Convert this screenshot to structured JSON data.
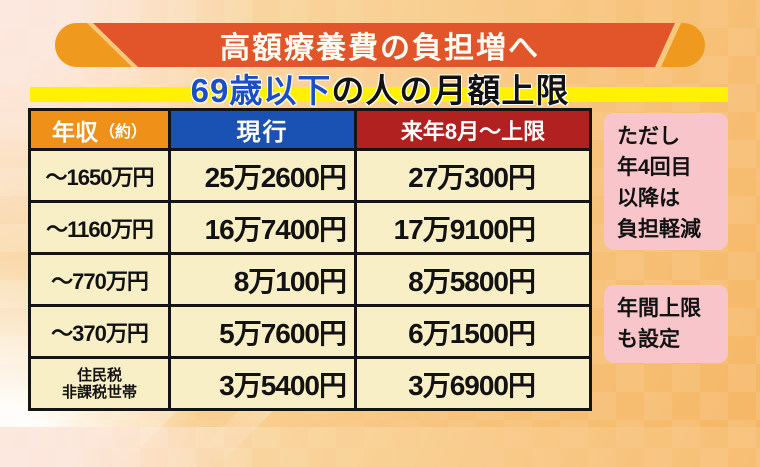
{
  "chart_data": {
    "type": "table",
    "title": "69歳以下の人の月額上限",
    "context_title": "高額療養費の負担増へ",
    "columns": [
      "年収（約）",
      "現行",
      "来年8月～上限"
    ],
    "rows": [
      [
        "～1650万円",
        "25万2600円",
        "27万300円"
      ],
      [
        "～1160万円",
        "16万7400円",
        "17万9100円"
      ],
      [
        "～770万円",
        "8万100円",
        "8万5800円"
      ],
      [
        "～370万円",
        "5万7600円",
        "6万1500円"
      ],
      [
        "住民税非課税世帯",
        "3万5400円",
        "3万6900円"
      ]
    ],
    "annotations": [
      "ただし年4回目以降は負担軽減",
      "年間上限も設定"
    ]
  },
  "banner": {
    "title": "高額療養費の負担増へ"
  },
  "subtitle": {
    "highlight": "69歳以下",
    "rest": "の人の月額上限"
  },
  "table": {
    "columns": [
      {
        "label": "年収",
        "label_sub": "（約）"
      },
      {
        "label": "現行"
      },
      {
        "label": "来年8月～上限"
      }
    ],
    "rows": [
      {
        "income": "～1650万円",
        "current": "25万2600円",
        "august": "27万300円"
      },
      {
        "income": "～1160万円",
        "current": "16万7400円",
        "august": "17万9100円"
      },
      {
        "income": "～770万円",
        "current": "8万100円",
        "august": "8万5800円"
      },
      {
        "income": "～370万円",
        "current": "5万7600円",
        "august": "6万1500円"
      },
      {
        "income": "住民税\n非課税世帯",
        "current": "3万5400円",
        "august": "3万6900円"
      }
    ]
  },
  "notes": [
    {
      "text": "ただし\n年4回目\n以降は\n負担軽減"
    },
    {
      "text": "年間上限\nも設定"
    }
  ],
  "palette": {
    "banner_main": "#E2542A",
    "banner_caps": "#F0991F",
    "subtitle_bar": "#FFF101",
    "subtitle_highlight": "#1C4FC6",
    "header_income": "#EF9119",
    "header_current": "#1A52B4",
    "header_august": "#B0211F",
    "cell_background": "#F9EFC6",
    "note_background": "#F8C6CA"
  }
}
